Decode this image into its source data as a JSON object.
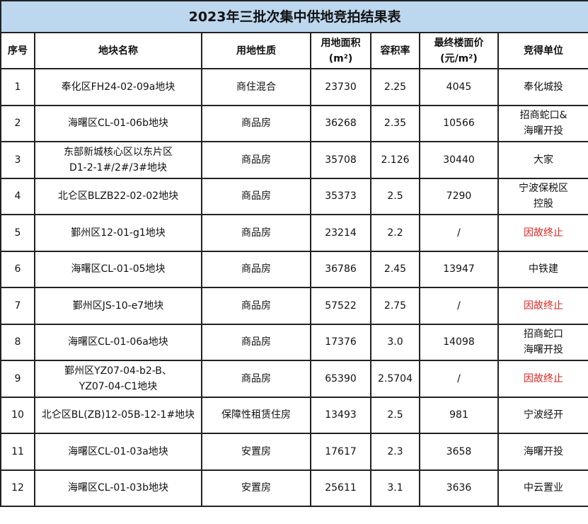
{
  "title": "2023年三批次集中供地竞拍结果表",
  "headers": [
    "序号",
    "地块名称",
    "用地性质",
    "用地面积\n(m²)",
    "容积率",
    "最终楼面价\n(元/m²)",
    "竞得单位"
  ],
  "colors": {
    "title_bg": "#bdd7ee",
    "terminated": "#e0211d"
  },
  "rows": [
    [
      "1",
      "奉化区FH24-02-09a地块",
      "商住混合",
      "23730",
      "2.25",
      "4045",
      "奉化城投"
    ],
    [
      "2",
      "海曙区CL-01-06b地块",
      "商品房",
      "36268",
      "2.35",
      "10566",
      "招商蛇口&\n海曙开投"
    ],
    [
      "3",
      "东部新城核心区以东片区\nD1-2-1#/2#/3#地块",
      "商品房",
      "35708",
      "2.126",
      "30440",
      "大家"
    ],
    [
      "4",
      "北仑区BLZB22-02-02地块",
      "商品房",
      "35373",
      "2.5",
      "7290",
      "宁波保税区\n控股"
    ],
    [
      "5",
      "鄞州区12-01-g1地块",
      "商品房",
      "23214",
      "2.2",
      "/",
      "因故终止"
    ],
    [
      "6",
      "海曙区CL-01-05地块",
      "商品房",
      "36786",
      "2.45",
      "13947",
      "中铁建"
    ],
    [
      "7",
      "鄞州区JS-10-e7地块",
      "商品房",
      "57522",
      "2.75",
      "/",
      "因故终止"
    ],
    [
      "8",
      "海曙区CL-01-06a地块",
      "商品房",
      "17376",
      "3.0",
      "14098",
      "招商蛇口\n海曙开投"
    ],
    [
      "9",
      "鄞州区YZ07-04-b2-B、\nYZ07-04-C1地块",
      "商品房",
      "65390",
      "2.5704",
      "/",
      "因故终止"
    ],
    [
      "10",
      "北仑区BL(ZB)12-05B-12-1#地块",
      "保障性租赁住房",
      "13493",
      "2.5",
      "981",
      "宁波经开"
    ],
    [
      "11",
      "海曙区CL-01-03a地块",
      "安置房",
      "17617",
      "2.3",
      "3658",
      "海曙开投"
    ],
    [
      "12",
      "海曙区CL-01-03b地块",
      "安置房",
      "25611",
      "3.1",
      "3636",
      "中云置业"
    ]
  ]
}
